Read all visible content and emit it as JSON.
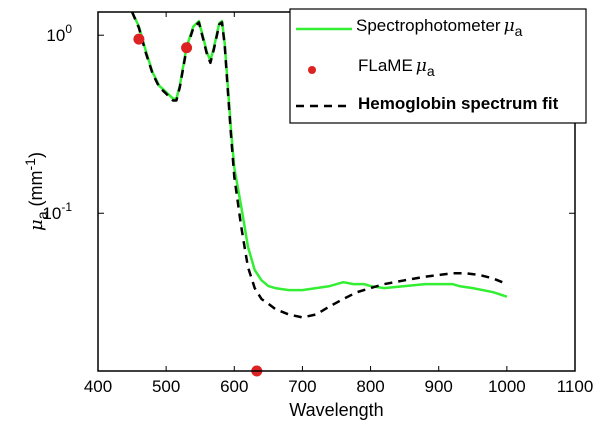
{
  "chart_data": {
    "type": "line",
    "xlabel": "Wavelength",
    "ylabel": {
      "symbol": "μ",
      "subscript": "a",
      "unit_open": " (mm",
      "unit_exp": "-1",
      "unit_close": ")"
    },
    "xlim": [
      400,
      1100
    ],
    "ylim": [
      0.013,
      1.35
    ],
    "yscale": "log",
    "x_ticks": [
      400,
      500,
      600,
      700,
      800,
      900,
      1000,
      1100
    ],
    "y_ticks": [
      {
        "value": 1,
        "base": "10",
        "exp": "0"
      },
      {
        "value": 0.1,
        "base": "10",
        "exp": "-1"
      }
    ],
    "grid": false,
    "legend_position": "top-right",
    "series": [
      {
        "name": "Spectrophotometer",
        "name_symbol": "μ",
        "name_sub": "a",
        "style": "solid",
        "color": "#33ee33",
        "x": [
          450,
          460,
          470,
          480,
          490,
          500,
          510,
          515,
          520,
          530,
          540,
          548,
          555,
          560,
          565,
          570,
          578,
          582,
          586,
          590,
          595,
          600,
          610,
          615,
          620,
          630,
          640,
          650,
          660,
          680,
          700,
          720,
          740,
          760,
          775,
          790,
          800,
          820,
          850,
          880,
          900,
          920,
          930,
          950,
          980,
          1000
        ],
        "y": [
          1.35,
          1.12,
          0.82,
          0.62,
          0.52,
          0.48,
          0.44,
          0.44,
          0.52,
          0.86,
          1.12,
          1.2,
          0.95,
          0.8,
          0.72,
          0.85,
          1.17,
          1.2,
          0.9,
          0.55,
          0.3,
          0.18,
          0.11,
          0.085,
          0.065,
          0.048,
          0.042,
          0.039,
          0.038,
          0.037,
          0.037,
          0.038,
          0.039,
          0.041,
          0.04,
          0.04,
          0.039,
          0.038,
          0.039,
          0.04,
          0.04,
          0.04,
          0.039,
          0.038,
          0.036,
          0.034
        ]
      },
      {
        "name": "FLaME",
        "name_symbol": "μ",
        "name_sub": "a",
        "style": "markers",
        "color": "#dd2222",
        "x": [
          460,
          530,
          633
        ],
        "y": [
          0.95,
          0.85,
          0.013
        ]
      },
      {
        "name": "Hemoglobin spectrum fit",
        "style": "dashed",
        "color": "#000000",
        "x": [
          450,
          460,
          470,
          480,
          490,
          500,
          510,
          515,
          520,
          530,
          540,
          548,
          555,
          560,
          565,
          570,
          578,
          582,
          586,
          590,
          595,
          600,
          610,
          615,
          620,
          630,
          640,
          650,
          660,
          680,
          700,
          720,
          740,
          760,
          780,
          800,
          820,
          850,
          880,
          900,
          920,
          940,
          960,
          980,
          1000
        ],
        "y": [
          1.35,
          1.1,
          0.8,
          0.61,
          0.51,
          0.47,
          0.43,
          0.43,
          0.51,
          0.84,
          1.1,
          1.18,
          0.93,
          0.78,
          0.7,
          0.83,
          1.15,
          1.18,
          0.88,
          0.52,
          0.28,
          0.16,
          0.085,
          0.065,
          0.05,
          0.038,
          0.033,
          0.031,
          0.029,
          0.027,
          0.026,
          0.027,
          0.03,
          0.033,
          0.036,
          0.038,
          0.04,
          0.042,
          0.044,
          0.045,
          0.046,
          0.046,
          0.045,
          0.043,
          0.04
        ]
      }
    ]
  }
}
